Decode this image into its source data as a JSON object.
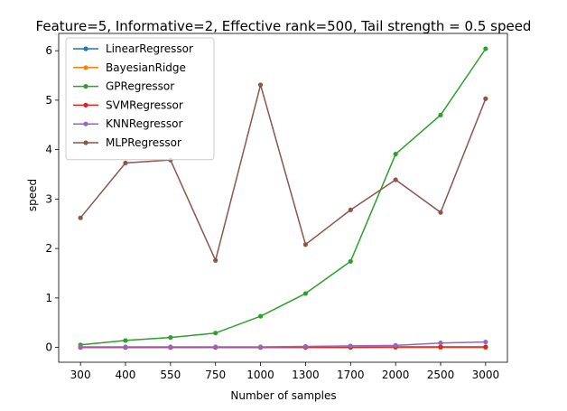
{
  "chart_data": {
    "type": "line",
    "title": "Feature=5, Informative=2, Effective rank=500, Tail strength = 0.5 speed",
    "xlabel": "Number of samples",
    "ylabel": "speed",
    "categories": [
      "300",
      "400",
      "550",
      "750",
      "1000",
      "1300",
      "1700",
      "2000",
      "2500",
      "3000"
    ],
    "ylim": [
      -0.3,
      6.35
    ],
    "yticks": [
      0,
      1,
      2,
      3,
      4,
      5,
      6
    ],
    "grid": false,
    "legend_position": "top-left",
    "series": [
      {
        "name": "LinearRegressor",
        "color": "#1f77b4",
        "values": [
          0.0,
          0.0,
          0.0,
          0.0,
          0.0,
          0.0,
          0.0,
          0.0,
          0.0,
          0.0
        ]
      },
      {
        "name": "BayesianRidge",
        "color": "#ff7f0e",
        "values": [
          0.0,
          0.0,
          0.0,
          0.0,
          0.0,
          0.0,
          0.0,
          0.0,
          0.0,
          0.0
        ]
      },
      {
        "name": "GPRegressor",
        "color": "#2ca02c",
        "values": [
          0.05,
          0.14,
          0.2,
          0.29,
          0.63,
          1.09,
          1.74,
          3.91,
          4.7,
          6.04
        ]
      },
      {
        "name": "SVMRegressor",
        "color": "#d62728",
        "values": [
          0.0,
          0.0,
          0.0,
          0.0,
          0.0,
          0.0,
          0.0,
          0.01,
          0.01,
          0.01
        ]
      },
      {
        "name": "KNNRegressor",
        "color": "#9467bd",
        "values": [
          0.01,
          0.01,
          0.01,
          0.01,
          0.01,
          0.02,
          0.03,
          0.04,
          0.09,
          0.11
        ]
      },
      {
        "name": "MLPRegressor",
        "color": "#8c564b",
        "values": [
          2.62,
          3.73,
          3.79,
          1.76,
          5.31,
          2.08,
          2.78,
          3.39,
          2.73,
          5.03
        ]
      }
    ]
  }
}
